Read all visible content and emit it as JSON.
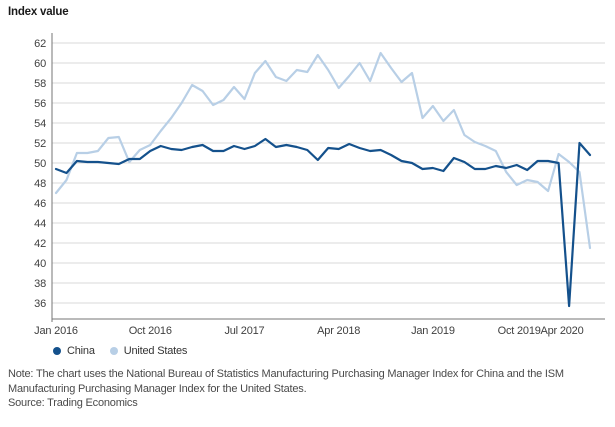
{
  "title": "Index value",
  "legend": {
    "items": [
      {
        "label": "China",
        "color": "#14518c"
      },
      {
        "label": "United States",
        "color": "#b8cfe6"
      }
    ]
  },
  "note": {
    "lines": [
      "Note: The chart uses the National Bureau of Statistics Manufacturing Purchasing Manager Index for China and the ISM",
      "Manufacturing Purchasing Manager Index for the United States."
    ],
    "source": "Source: Trading Economics"
  },
  "colors": {
    "china_line": "#14518c",
    "us_line": "#b8cfe6",
    "gridline": "#d9d9d9",
    "axis": "#767676",
    "tick_text": "#404040",
    "note_text": "#4a4a4a"
  },
  "chart_data": {
    "type": "line",
    "title": "Index value",
    "ylabel": "Index value",
    "xlabel": "",
    "ylim": [
      36,
      62
    ],
    "grid": "horizontal",
    "legend_position": "bottom",
    "yticks": [
      36,
      38,
      40,
      42,
      44,
      46,
      48,
      50,
      52,
      54,
      56,
      58,
      60,
      62
    ],
    "x_tick_labels": [
      {
        "label": "Jan 2016",
        "month": 0
      },
      {
        "label": "Oct 2016",
        "month": 9
      },
      {
        "label": "Jul 2017",
        "month": 18
      },
      {
        "label": "Apr 2018",
        "month": 27
      },
      {
        "label": "Jan 2019",
        "month": 36
      },
      {
        "label": "Oct 2019",
        "month": 45
      },
      {
        "label": "Apr 2020",
        "month": 51
      }
    ],
    "x": [
      "Jan 2016",
      "Feb 2016",
      "Mar 2016",
      "Apr 2016",
      "May 2016",
      "Jun 2016",
      "Jul 2016",
      "Aug 2016",
      "Sep 2016",
      "Oct 2016",
      "Nov 2016",
      "Dec 2016",
      "Jan 2017",
      "Feb 2017",
      "Mar 2017",
      "Apr 2017",
      "May 2017",
      "Jun 2017",
      "Jul 2017",
      "Aug 2017",
      "Sep 2017",
      "Oct 2017",
      "Nov 2017",
      "Dec 2017",
      "Jan 2018",
      "Feb 2018",
      "Mar 2018",
      "Apr 2018",
      "May 2018",
      "Jun 2018",
      "Jul 2018",
      "Aug 2018",
      "Sep 2018",
      "Oct 2018",
      "Nov 2018",
      "Dec 2018",
      "Jan 2019",
      "Feb 2019",
      "Mar 2019",
      "Apr 2019",
      "May 2019",
      "Jun 2019",
      "Jul 2019",
      "Aug 2019",
      "Sep 2019",
      "Oct 2019",
      "Nov 2019",
      "Dec 2019",
      "Jan 2020",
      "Feb 2020",
      "Mar 2020",
      "Apr 2020"
    ],
    "series": [
      {
        "name": "China",
        "color": "#14518c",
        "values": [
          49.4,
          49.0,
          50.2,
          50.1,
          50.1,
          50.0,
          49.9,
          50.4,
          50.4,
          51.2,
          51.7,
          51.4,
          51.3,
          51.6,
          51.8,
          51.2,
          51.2,
          51.7,
          51.4,
          51.7,
          52.4,
          51.6,
          51.8,
          51.6,
          51.3,
          50.3,
          51.5,
          51.4,
          51.9,
          51.5,
          51.2,
          51.3,
          50.8,
          50.2,
          50.0,
          49.4,
          49.5,
          49.2,
          50.5,
          50.1,
          49.4,
          49.4,
          49.7,
          49.5,
          49.8,
          49.3,
          50.2,
          50.2,
          50.0,
          35.7,
          52.0,
          50.8
        ]
      },
      {
        "name": "United States",
        "color": "#b8cfe6",
        "values": [
          47.0,
          48.3,
          51.0,
          51.0,
          51.2,
          52.5,
          52.6,
          50.1,
          51.3,
          51.8,
          53.2,
          54.5,
          56.0,
          57.8,
          57.2,
          55.8,
          56.3,
          57.6,
          56.4,
          59.0,
          60.2,
          58.6,
          58.2,
          59.3,
          59.1,
          60.8,
          59.3,
          57.5,
          58.7,
          60.0,
          58.2,
          61.0,
          59.5,
          58.1,
          59.0,
          54.5,
          55.7,
          54.2,
          55.3,
          52.8,
          52.1,
          51.7,
          51.2,
          49.1,
          47.8,
          48.3,
          48.1,
          47.2,
          50.9,
          50.1,
          49.1,
          41.5
        ]
      }
    ]
  }
}
